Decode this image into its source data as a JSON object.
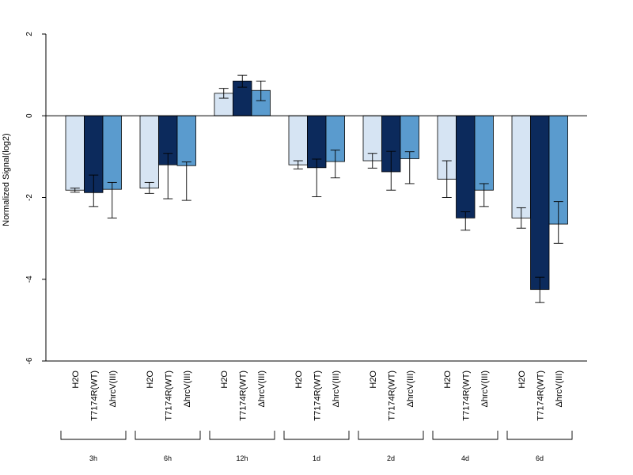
{
  "chart_data": {
    "type": "bar",
    "ylabel": "Normalized Signal(log2)",
    "ylim": [
      -6,
      2
    ],
    "yticks": [
      -6,
      -4,
      -2,
      0,
      2
    ],
    "groups": [
      "3h",
      "6h",
      "12h",
      "1d",
      "2d",
      "4d",
      "6d"
    ],
    "series": [
      {
        "name": "H2O",
        "color": "#d6e4f3",
        "values": [
          -1.82,
          -1.77,
          0.55,
          -1.2,
          -1.1,
          -1.55,
          -2.5
        ],
        "err_low": [
          -1.87,
          -1.9,
          0.43,
          -1.3,
          -1.28,
          -2.0,
          -2.75
        ],
        "err_high": [
          -1.77,
          -1.63,
          0.67,
          -1.1,
          -0.92,
          -1.1,
          -2.25
        ]
      },
      {
        "name": "T7174R(WT)",
        "color": "#0c2a5c",
        "values": [
          -1.88,
          -1.2,
          0.85,
          -1.27,
          -1.37,
          -2.5,
          -4.25
        ],
        "err_low": [
          -2.22,
          -2.03,
          0.7,
          -1.98,
          -1.82,
          -2.8,
          -4.57
        ],
        "err_high": [
          -1.45,
          -0.92,
          0.99,
          -1.06,
          -0.87,
          -2.35,
          -3.95
        ]
      },
      {
        "name": "ΔhrcV(III)",
        "color": "#5a9bce",
        "values": [
          -1.8,
          -1.22,
          0.62,
          -1.12,
          -1.05,
          -1.82,
          -2.65
        ],
        "err_low": [
          -2.5,
          -2.07,
          0.37,
          -1.52,
          -1.66,
          -2.22,
          -3.12
        ],
        "err_high": [
          -1.63,
          -1.13,
          0.85,
          -0.84,
          -0.88,
          -1.66,
          -2.1
        ]
      }
    ]
  }
}
